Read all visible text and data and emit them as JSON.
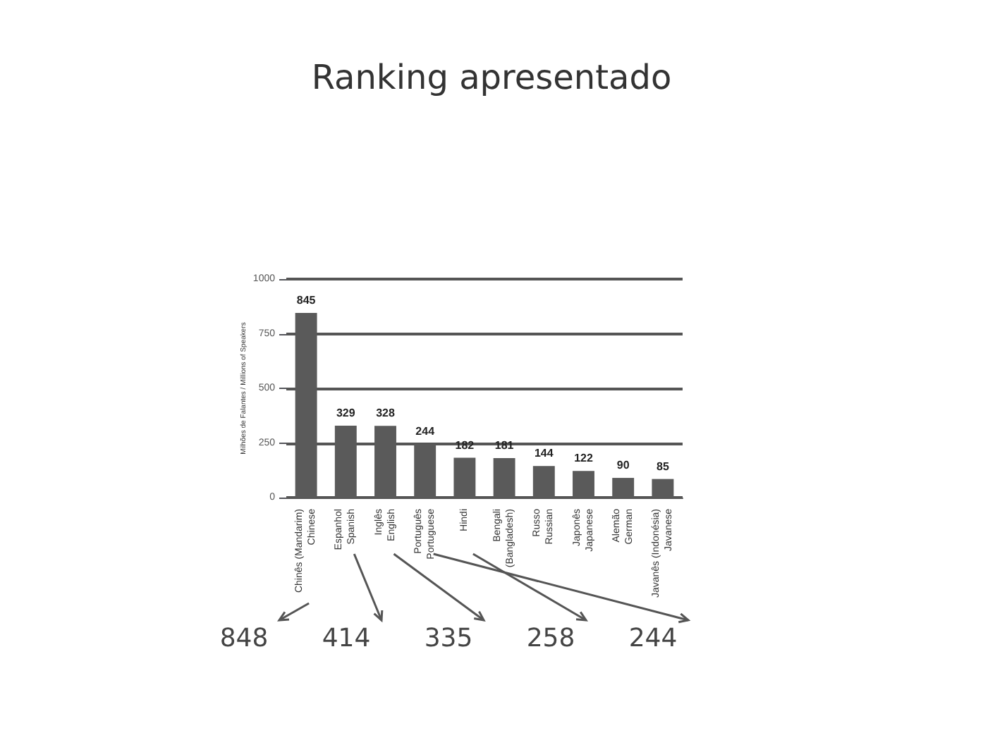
{
  "chart_data": {
    "type": "bar",
    "title": "Ranking apresentado",
    "ylabel": "Milhões de Falantes / Millions of Speakers",
    "categories": [
      "Chinês (Mandarim)\nChinese",
      "Espanhol\nSpanish",
      "Inglês\nEnglish",
      "Português\nPortuguese",
      "Hindi",
      "Bengali\n(Bangladesh)",
      "Russo\nRussian",
      "Japonês\nJapanese",
      "Alemão\nGerman",
      "Javanês (Indonésia)\nJavanese"
    ],
    "values": [
      845,
      329,
      328,
      244,
      182,
      181,
      144,
      122,
      90,
      85
    ],
    "color": "#5a5a5a",
    "ylim": [
      0,
      1000
    ],
    "yticks": [
      0,
      250,
      500,
      750,
      1000
    ],
    "grid": "y",
    "data_labels": true,
    "annotations": [
      "848",
      "414",
      "335",
      "258",
      "244"
    ]
  }
}
